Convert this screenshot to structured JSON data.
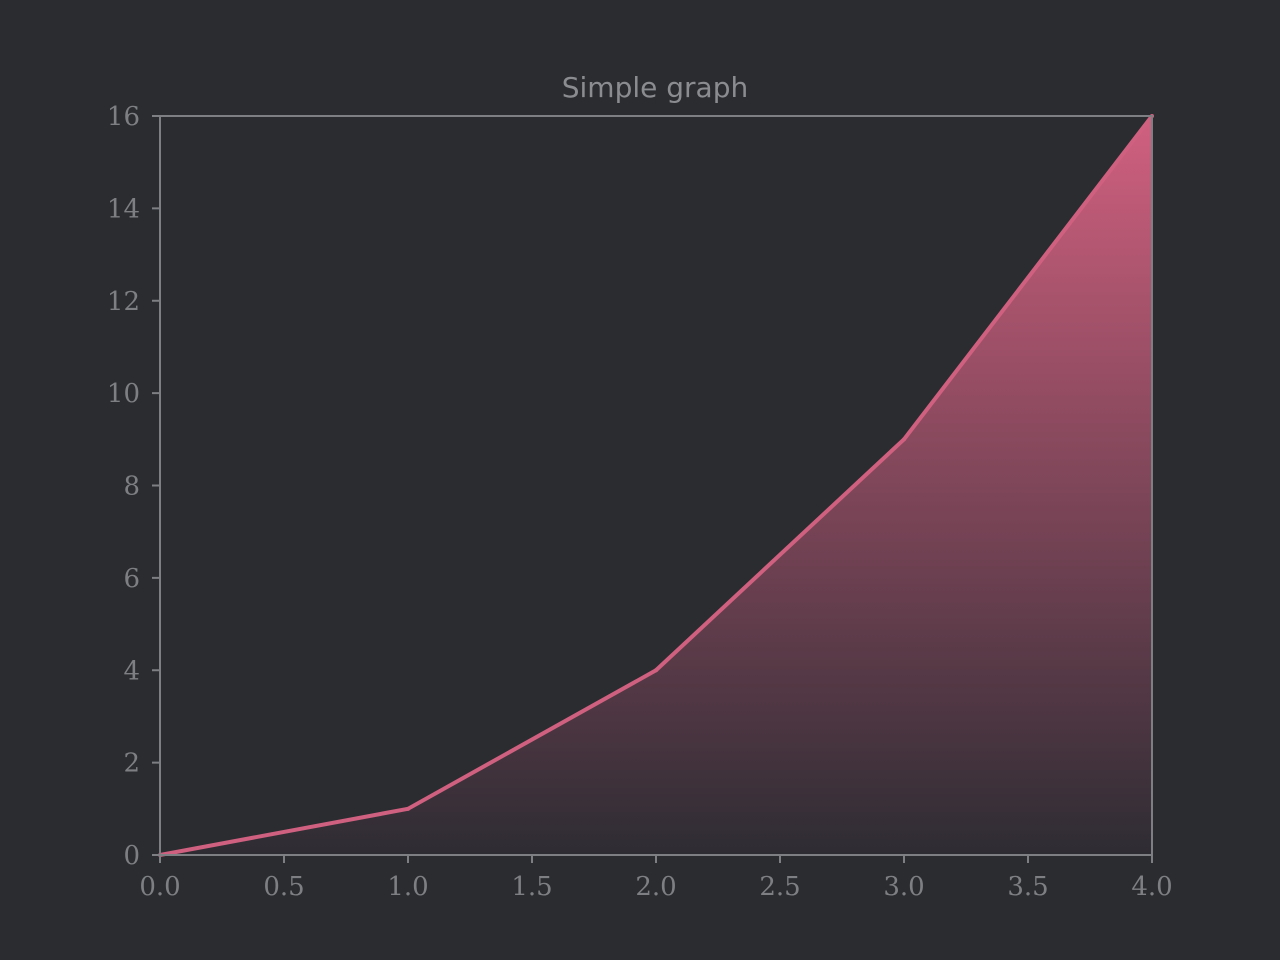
{
  "chart_data": {
    "type": "area",
    "title": "Simple graph",
    "xlabel": "",
    "ylabel": "",
    "x": [
      0,
      1,
      2,
      3,
      4
    ],
    "series": [
      {
        "values": [
          0,
          1,
          4,
          9,
          16
        ]
      }
    ],
    "xlim": [
      0,
      4
    ],
    "ylim": [
      0,
      16
    ],
    "xticks": [
      0.0,
      0.5,
      1.0,
      1.5,
      2.0,
      2.5,
      3.0,
      3.5,
      4.0
    ],
    "xtick_labels": [
      "0.0",
      "0.5",
      "1.0",
      "1.5",
      "2.0",
      "2.5",
      "3.0",
      "3.5",
      "4.0"
    ],
    "yticks": [
      0,
      2,
      4,
      6,
      8,
      10,
      12,
      14,
      16
    ],
    "ytick_labels": [
      "0",
      "2",
      "4",
      "6",
      "8",
      "10",
      "12",
      "14",
      "16"
    ],
    "grid": false,
    "legend": "none",
    "colors": {
      "background": "#2a2c30",
      "line": "#d0607f",
      "fill_top": "#d0607f",
      "fill_bottom": "#2e2c33",
      "axes": "#7d7f83",
      "text": "#7d7f83"
    }
  }
}
